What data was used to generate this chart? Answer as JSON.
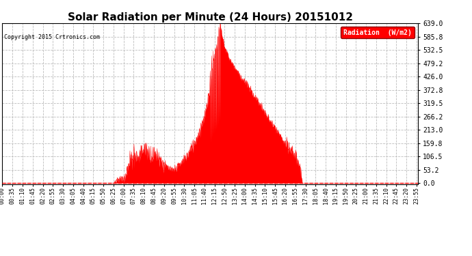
{
  "title": "Solar Radiation per Minute (24 Hours) 20151012",
  "copyright_text": "Copyright 2015 Crtronics.com",
  "legend_label": "Radiation  (W/m2)",
  "fill_color": "#FF0000",
  "line_color": "#FF0000",
  "background_color": "#FFFFFF",
  "grid_color": "#BBBBBB",
  "dashed_line_color": "#FF0000",
  "yticks": [
    0.0,
    53.2,
    106.5,
    159.8,
    213.0,
    266.2,
    319.5,
    372.8,
    426.0,
    479.2,
    532.5,
    585.8,
    639.0
  ],
  "ymax": 639.0,
  "ymin": 0.0,
  "total_minutes": 1440,
  "xtick_step": 35,
  "title_fontsize": 11,
  "tick_fontsize": 6,
  "ytick_fontsize": 7
}
